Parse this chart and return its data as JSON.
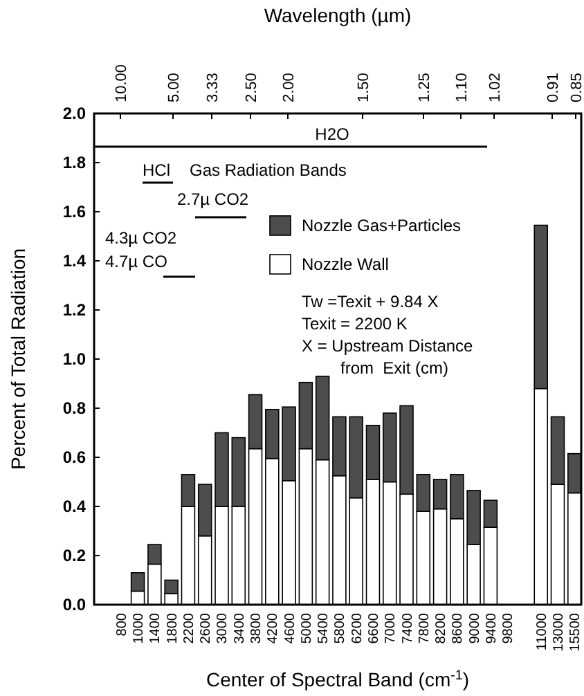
{
  "chart_data": {
    "type": "bar",
    "stacked": true,
    "xlabel": "Center of Spectral Band (cm$^{-1}$)",
    "ylabel": "Percent of Total Radiation",
    "x2label": "Wavelength (µm)",
    "categories": [
      "800",
      "1000",
      "1400",
      "1800",
      "2200",
      "2600",
      "3000",
      "3400",
      "3800",
      "4200",
      "4600",
      "5000",
      "5400",
      "5800",
      "6200",
      "6600",
      "7000",
      "7400",
      "7800",
      "8200",
      "8600",
      "9000",
      "9400",
      "9800",
      null,
      "11000",
      "13000",
      "15500"
    ],
    "series": [
      {
        "name": "Nozzle Wall",
        "color": "#ffffff",
        "values": [
          0,
          0.055,
          0.165,
          0.045,
          0.4,
          0.28,
          0.4,
          0.4,
          0.635,
          0.595,
          0.505,
          0.635,
          0.59,
          0.525,
          0.435,
          0.51,
          0.5,
          0.45,
          0.38,
          0.39,
          0.35,
          0.245,
          0.315,
          0,
          null,
          0.88,
          0.49,
          0.455
        ]
      },
      {
        "name": "Nozzle Gas+Particles",
        "color": "#4d4d4d",
        "values": [
          0,
          0.075,
          0.08,
          0.055,
          0.13,
          0.21,
          0.3,
          0.28,
          0.22,
          0.2,
          0.3,
          0.27,
          0.34,
          0.24,
          0.33,
          0.22,
          0.28,
          0.36,
          0.15,
          0.12,
          0.18,
          0.22,
          0.11,
          0,
          null,
          0.665,
          0.275,
          0.16
        ]
      }
    ],
    "ylim": [
      0,
      2
    ],
    "yticks": [
      {
        "value": 0,
        "label": "0.0"
      },
      {
        "value": 0.2,
        "label": "0.2"
      },
      {
        "value": 0.4,
        "label": "0.4"
      },
      {
        "value": 0.6,
        "label": "0.6"
      },
      {
        "value": 0.8,
        "label": "0.8"
      },
      {
        "value": 1,
        "label": "1.0"
      },
      {
        "value": 1.2,
        "label": "1.2"
      },
      {
        "value": 1.4,
        "label": "1.4"
      },
      {
        "value": 1.6,
        "label": "1.6"
      },
      {
        "value": 1.8,
        "label": "1.8"
      },
      {
        "value": 2,
        "label": "2.0"
      }
    ],
    "legend": "top right",
    "grid": false,
    "ref_lines": [
      {
        "axis": "y",
        "value": 1.865,
        "label": "H2O",
        "color": "#000000"
      }
    ],
    "annotations": [
      "HCl",
      "Gas Radiation Bands",
      "2.7µ CO2",
      "4.3µ CO2",
      "4.7µ CO",
      "Tw =Texit + 9.84 X",
      "Texit = 2200 K",
      "X = Upstream Distance",
      "from  Exit (cm)",
      "10.00",
      "5.00",
      "3.33",
      "2.50",
      "2.00",
      "1.50",
      "1.25",
      "1.10",
      "1.02",
      "0.91",
      "0.85"
    ]
  }
}
